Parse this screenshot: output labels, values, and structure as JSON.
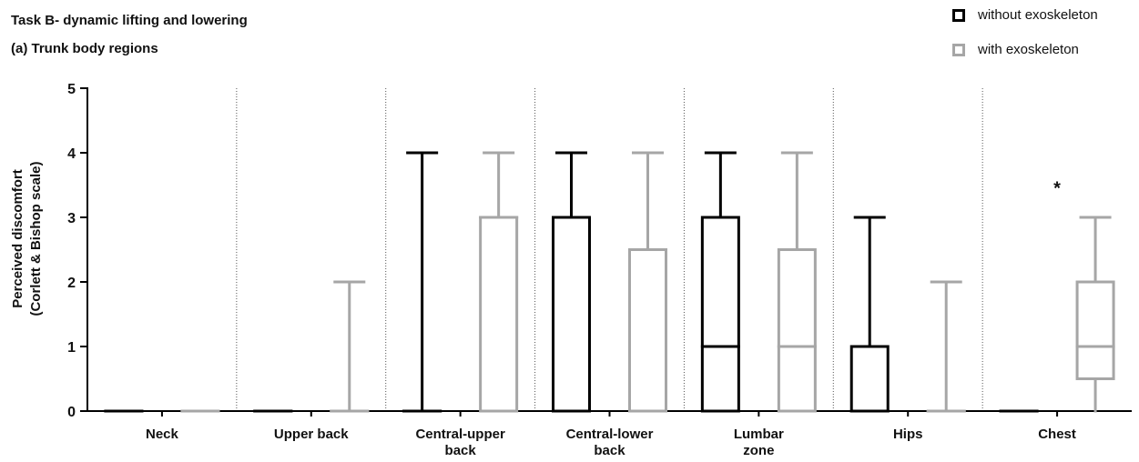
{
  "chart_data": {
    "type": "box",
    "title": "Task B- dynamic lifting and lowering",
    "subtitle": "(a) Trunk body regions",
    "ylabel_lines": [
      "Perceived discomfort",
      "(Corlett & Bishop scale)"
    ],
    "ylim": [
      0,
      5
    ],
    "yticks": [
      "0",
      "1",
      "2",
      "3",
      "4",
      "5"
    ],
    "categories": [
      [
        "Neck"
      ],
      [
        "Upper back"
      ],
      [
        "Central-upper",
        "back"
      ],
      [
        "Central-lower",
        "back"
      ],
      [
        "Lumbar",
        "zone"
      ],
      [
        "Hips"
      ],
      [
        "Chest"
      ]
    ],
    "series": [
      {
        "name": "without exoskeleton",
        "color": "#000000",
        "boxes": [
          {
            "min": 0,
            "q1": 0,
            "median": 0,
            "q3": 0,
            "max": 0
          },
          {
            "min": 0,
            "q1": 0,
            "median": 0,
            "q3": 0,
            "max": 0
          },
          {
            "min": 0,
            "q1": 0,
            "median": 0,
            "q3": 0,
            "max": 4
          },
          {
            "min": 0,
            "q1": 0,
            "median": 0,
            "q3": 3,
            "max": 4
          },
          {
            "min": 0,
            "q1": 0,
            "median": 1,
            "q3": 3,
            "max": 4
          },
          {
            "min": 0,
            "q1": 0,
            "median": 0,
            "q3": 1,
            "max": 3
          },
          {
            "min": 0,
            "q1": 0,
            "median": 0,
            "q3": 0,
            "max": 0
          }
        ]
      },
      {
        "name": "with exoskeleton",
        "color": "#a6a6a6",
        "boxes": [
          {
            "min": 0,
            "q1": 0,
            "median": 0,
            "q3": 0,
            "max": 0
          },
          {
            "min": 0,
            "q1": 0,
            "median": 0,
            "q3": 0,
            "max": 2
          },
          {
            "min": 0,
            "q1": 0,
            "median": 3,
            "q3": 3,
            "max": 4
          },
          {
            "min": 0,
            "q1": 0,
            "median": 0,
            "q3": 2.5,
            "max": 4
          },
          {
            "min": 0,
            "q1": 0,
            "median": 1,
            "q3": 2.5,
            "max": 4
          },
          {
            "min": 0,
            "q1": 0,
            "median": 0,
            "q3": 0,
            "max": 2
          },
          {
            "min": 0,
            "q1": 0.5,
            "median": 1,
            "q3": 2,
            "max": 3
          }
        ]
      }
    ],
    "annotations": [
      {
        "text": "*",
        "category_index": 6,
        "y": 3.5
      }
    ],
    "grid": false,
    "category_separators": "dotted",
    "legend_position": "top-right"
  }
}
